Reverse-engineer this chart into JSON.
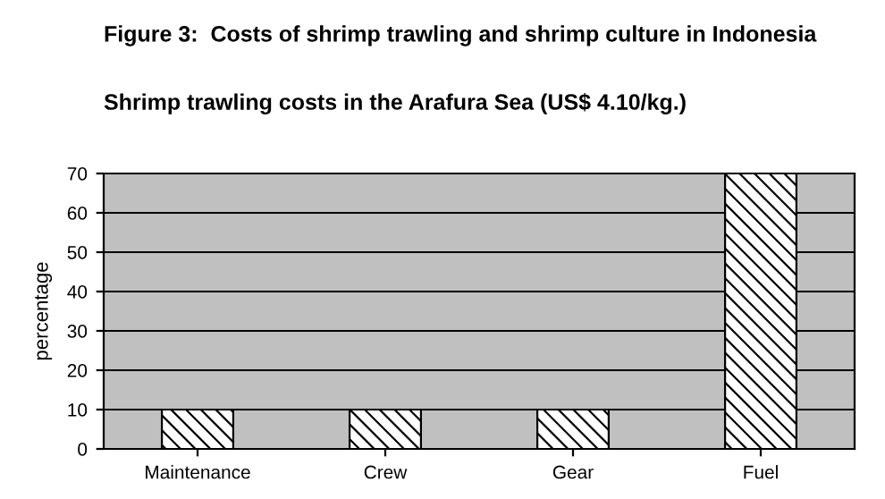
{
  "chart_data": {
    "type": "bar",
    "title": "Figure 3:  Costs of shrimp trawling and shrimp culture in Indonesia",
    "subtitle": "Shrimp trawling costs in the Arafura Sea (US$ 4.10/kg.)",
    "ylabel": "percentage",
    "categories": [
      "Maintenance",
      "Crew",
      "Gear",
      "Fuel"
    ],
    "values": [
      10,
      10,
      10,
      70
    ],
    "color": "#000000",
    "ylim": [
      0,
      70
    ],
    "yticks": [
      0,
      10,
      20,
      30,
      40,
      50,
      60,
      70
    ],
    "grid": "y",
    "legend": false
  }
}
